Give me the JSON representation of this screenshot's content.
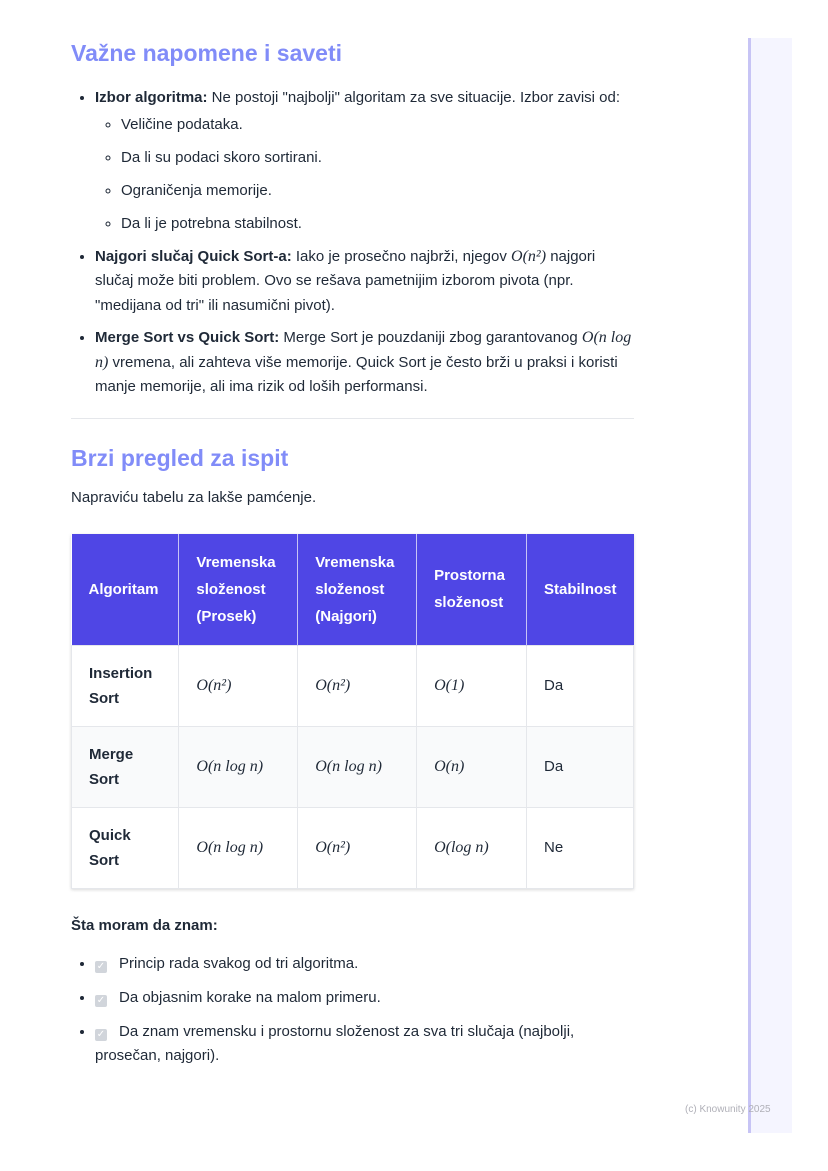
{
  "section1": {
    "title": "Važne napomene i saveti",
    "items": [
      {
        "bold": "Izbor algoritma:",
        "text": " Ne postoji \"najbolji\" algoritam za sve situacije. Izbor zavisi od:",
        "sub": [
          "Veličine podataka.",
          "Da li su podaci skoro sortirani.",
          "Ograničenja memorije.",
          "Da li je potrebna stabilnost."
        ]
      },
      {
        "bold": "Najgori slučaj Quick Sort-a:",
        "text_a": " Iako je prosečno najbrži, njegov ",
        "math": "O(n²)",
        "text_b": " najgori slučaj može biti problem. Ovo se rešava pametnijim izborom pivota (npr. \"medijana od tri\" ili nasumični pivot)."
      },
      {
        "bold": "Merge Sort vs Quick Sort:",
        "text_a": " Merge Sort je pouzdaniji zbog garantovanog ",
        "math": "O(n log n)",
        "text_b": " vremena, ali zahteva više memorije. Quick Sort je često brži u praksi i koristi manje memorije, ali ima rizik od loših performansi."
      }
    ]
  },
  "section2": {
    "title": "Brzi pregled za ispit",
    "intro": "Napraviću tabelu za lakše pamćenje.",
    "table": {
      "headers": [
        "Algoritam",
        "Vremenska složenost (Prosek)",
        "Vremenska složenost (Najgori)",
        "Prostorna složenost",
        "Stabilnost"
      ],
      "rows": [
        [
          "Insertion Sort",
          "O(n²)",
          "O(n²)",
          "O(1)",
          "Da"
        ],
        [
          "Merge Sort",
          "O(n log n)",
          "O(n log n)",
          "O(n)",
          "Da"
        ],
        [
          "Quick Sort",
          "O(n log n)",
          "O(n²)",
          "O(log n)",
          "Ne"
        ]
      ]
    },
    "know_title": "Šta moram da znam:",
    "checklist": [
      "Princip rada svakog od tri algoritma.",
      "Da objasnim korake na malom primeru.",
      "Da znam vremensku i prostornu složenost za sva tri slučaja (najbolji, prosečan, najgori)."
    ]
  },
  "footer": "(c) Knowunity 2025",
  "colors": {
    "heading": "#818cf8",
    "table_header": "#4f46e5",
    "sidebar_border": "#c7c4f5"
  }
}
